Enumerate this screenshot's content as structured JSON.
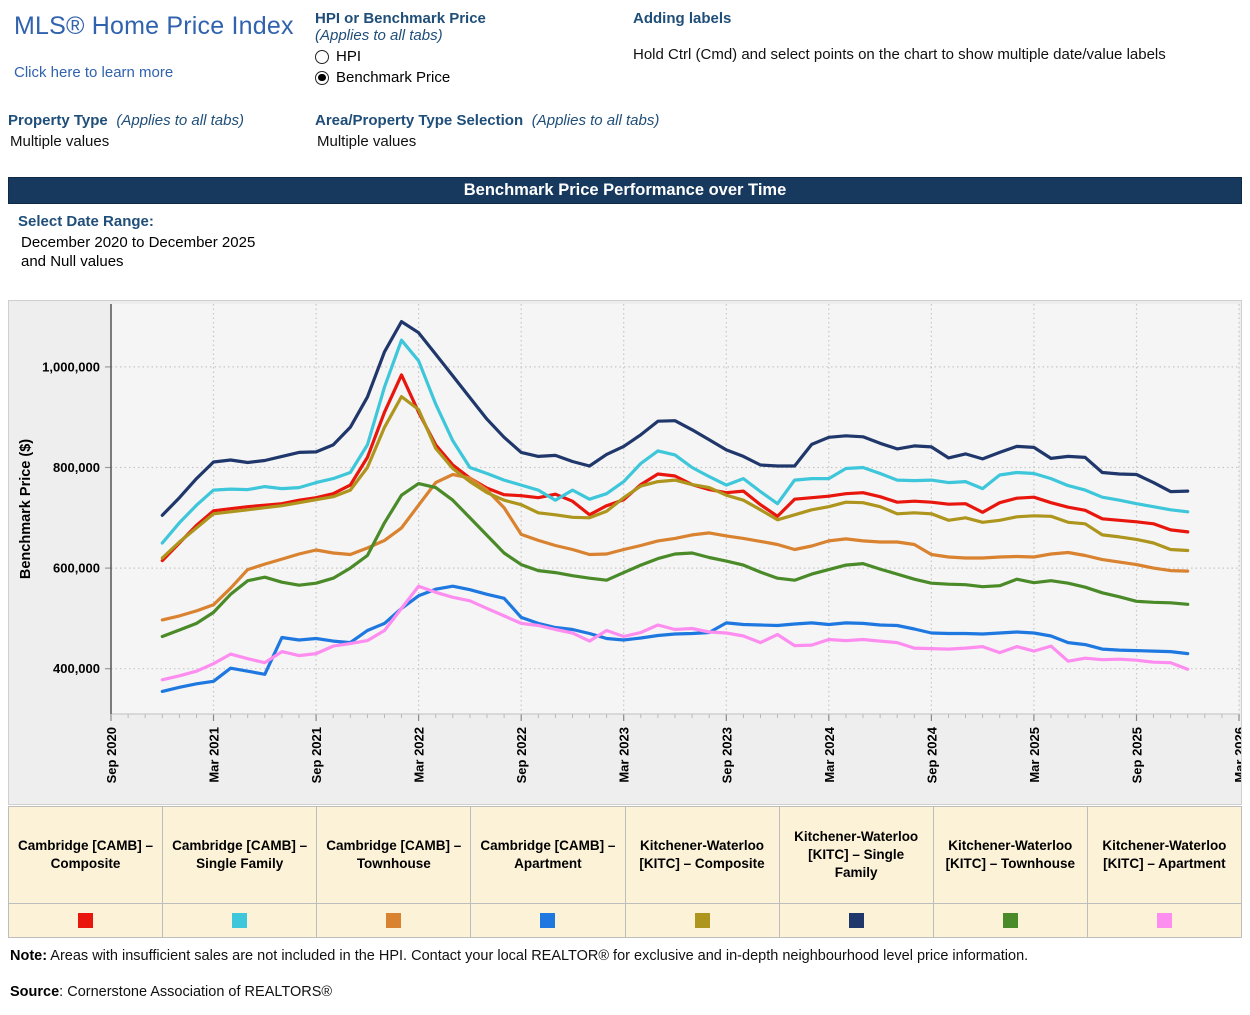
{
  "header": {
    "title": "MLS® Home Price Index",
    "learn_more": "Click here to learn more",
    "measure_selector": {
      "label": "HPI or Benchmark Price",
      "sublabel": "(Applies to all tabs)",
      "options": [
        {
          "label": "HPI",
          "selected": false
        },
        {
          "label": "Benchmark Price",
          "selected": true
        }
      ]
    },
    "adding_labels": {
      "label": "Adding labels",
      "instruction": "Hold Ctrl (Cmd) and select points on the chart to show multiple date/value labels"
    },
    "property_type": {
      "label": "Property Type",
      "sublabel": "(Applies to all tabs)",
      "value": "Multiple values"
    },
    "area_property_type": {
      "label": "Area/Property Type Selection",
      "sublabel": "(Applies to all tabs)",
      "value": "Multiple values"
    }
  },
  "banner": {
    "title": "Benchmark Price Performance over Time",
    "bg_color": "#16395d"
  },
  "date_range": {
    "label": "Select Date Range:",
    "line1": "December 2020 to December 2025",
    "line2": "and Null values"
  },
  "chart_data": {
    "type": "line",
    "title": "Benchmark Price Performance over Time",
    "xlabel": "",
    "ylabel": "Benchmark Price ($)",
    "x_tick_labels": [
      "Sep 2020",
      "Mar 2021",
      "Sep 2021",
      "Mar 2022",
      "Sep 2022",
      "Mar 2023",
      "Sep 2023",
      "Mar 2024",
      "Sep 2024",
      "Mar 2025",
      "Sep 2025",
      "Mar 2026"
    ],
    "y_ticks": [
      {
        "value": 400000,
        "label": "400,000"
      },
      {
        "value": 600000,
        "label": "600,000"
      },
      {
        "value": 800000,
        "label": "800,000"
      },
      {
        "value": 1000000,
        "label": "1,000,000"
      }
    ],
    "ylim": [
      310000,
      1125000
    ],
    "x_domain": [
      "2020-09",
      "2026-03"
    ],
    "data_start": "2020-12",
    "data_end": "2025-12",
    "frequency": "monthly",
    "unit": "values_k = benchmark price in thousands of dollars, estimated from plot",
    "grid": "dotted",
    "legend_position": "bottom-table",
    "series": [
      {
        "name": "Cambridge [CAMB] – Composite",
        "color": "#e8160d",
        "values_k": [
          615,
          650,
          685,
          714,
          718,
          722,
          725,
          728,
          735,
          740,
          748,
          765,
          820,
          910,
          984,
          910,
          845,
          805,
          779,
          759,
          746,
          744,
          740,
          747,
          733,
          706,
          724,
          736,
          766,
          787,
          783,
          766,
          756,
          750,
          753,
          726,
          703,
          737,
          740,
          743,
          748,
          750,
          742,
          731,
          733,
          731,
          727,
          728,
          711,
          730,
          739,
          741,
          730,
          721,
          715,
          698,
          695,
          692,
          688,
          676,
          672
        ]
      },
      {
        "name": "Cambridge [CAMB] – Single Family",
        "color": "#3ec6da",
        "values_k": [
          650,
          690,
          725,
          755,
          757,
          756,
          762,
          758,
          760,
          770,
          778,
          790,
          845,
          960,
          1053,
          1012,
          926,
          853,
          800,
          788,
          775,
          765,
          755,
          735,
          755,
          737,
          748,
          772,
          808,
          833,
          825,
          800,
          782,
          765,
          778,
          752,
          728,
          775,
          778,
          778,
          798,
          800,
          788,
          775,
          774,
          775,
          770,
          772,
          758,
          785,
          790,
          788,
          778,
          764,
          755,
          741,
          735,
          728,
          722,
          716,
          712
        ]
      },
      {
        "name": "Cambridge [CAMB] – Townhouse",
        "color": "#d9822f",
        "values_k": [
          497,
          505,
          515,
          527,
          560,
          597,
          608,
          618,
          628,
          636,
          630,
          627,
          640,
          655,
          680,
          725,
          770,
          786,
          779,
          755,
          720,
          667,
          655,
          645,
          637,
          627,
          628,
          637,
          645,
          654,
          659,
          666,
          670,
          664,
          659,
          653,
          647,
          637,
          644,
          654,
          658,
          654,
          652,
          652,
          647,
          627,
          622,
          620,
          620,
          622,
          623,
          622,
          628,
          631,
          625,
          617,
          612,
          607,
          600,
          595,
          594
        ]
      },
      {
        "name": "Cambridge [CAMB] – Apartment",
        "color": "#1e78e0",
        "values_k": [
          355,
          363,
          370,
          375,
          401,
          395,
          389,
          462,
          457,
          460,
          455,
          452,
          476,
          490,
          520,
          545,
          558,
          564,
          557,
          548,
          540,
          502,
          490,
          482,
          478,
          470,
          460,
          457,
          461,
          466,
          469,
          470,
          472,
          491,
          488,
          487,
          486,
          489,
          491,
          488,
          491,
          490,
          487,
          486,
          479,
          471,
          470,
          470,
          469,
          471,
          473,
          471,
          465,
          452,
          448,
          439,
          437,
          436,
          435,
          434,
          430
        ]
      },
      {
        "name": "Kitchener-Waterloo [KITC] – Composite",
        "color": "#ae951d",
        "values_k": [
          620,
          652,
          680,
          708,
          712,
          716,
          720,
          724,
          730,
          736,
          742,
          755,
          800,
          880,
          941,
          915,
          838,
          798,
          772,
          750,
          735,
          726,
          710,
          706,
          701,
          700,
          713,
          740,
          763,
          772,
          775,
          766,
          760,
          745,
          735,
          716,
          696,
          706,
          716,
          722,
          731,
          730,
          722,
          708,
          710,
          708,
          695,
          700,
          691,
          695,
          702,
          704,
          703,
          691,
          688,
          666,
          662,
          657,
          650,
          637,
          635
        ]
      },
      {
        "name": "Kitchener-Waterloo [KITC] – Single Family",
        "color": "#20376b",
        "values_k": [
          705,
          740,
          778,
          811,
          815,
          810,
          814,
          822,
          830,
          831,
          845,
          880,
          940,
          1030,
          1090,
          1068,
          1025,
          982,
          939,
          896,
          860,
          830,
          822,
          824,
          812,
          803,
          826,
          842,
          865,
          892,
          893,
          875,
          855,
          835,
          822,
          805,
          803,
          803,
          846,
          860,
          863,
          861,
          848,
          837,
          843,
          841,
          819,
          827,
          817,
          830,
          842,
          840,
          818,
          822,
          820,
          790,
          787,
          786,
          770,
          752,
          753
        ]
      },
      {
        "name": "Kitchener-Waterloo [KITC] – Townhouse",
        "color": "#4a8a28",
        "values_k": [
          464,
          477,
          490,
          512,
          548,
          575,
          582,
          572,
          566,
          570,
          580,
          600,
          625,
          690,
          745,
          768,
          760,
          735,
          700,
          665,
          630,
          607,
          595,
          591,
          585,
          580,
          576,
          591,
          606,
          619,
          628,
          630,
          621,
          614,
          606,
          592,
          580,
          576,
          588,
          597,
          606,
          609,
          598,
          588,
          578,
          570,
          568,
          567,
          563,
          565,
          578,
          571,
          575,
          570,
          562,
          551,
          543,
          534,
          532,
          531,
          528
        ]
      },
      {
        "name": "Kitchener-Waterloo [KITC] – Apartment",
        "color": "#fd8ef0",
        "values_k": [
          378,
          386,
          395,
          410,
          429,
          420,
          412,
          434,
          426,
          430,
          445,
          450,
          456,
          476,
          520,
          564,
          552,
          542,
          535,
          520,
          505,
          490,
          486,
          478,
          471,
          455,
          476,
          464,
          472,
          487,
          478,
          480,
          473,
          471,
          465,
          452,
          468,
          446,
          447,
          458,
          456,
          458,
          455,
          452,
          441,
          440,
          439,
          441,
          444,
          432,
          444,
          435,
          445,
          415,
          421,
          418,
          419,
          417,
          413,
          412,
          399
        ]
      }
    ]
  },
  "legend": {
    "entries": [
      {
        "label": "Cambridge [CAMB] – Composite",
        "color": "#e8160d"
      },
      {
        "label": "Cambridge [CAMB] – Single Family",
        "color": "#3ec6da"
      },
      {
        "label": "Cambridge [CAMB] – Townhouse",
        "color": "#d9822f"
      },
      {
        "label": "Cambridge [CAMB] – Apartment",
        "color": "#1e78e0"
      },
      {
        "label": "Kitchener-Waterloo [KITC] – Composite",
        "color": "#ae951d"
      },
      {
        "label": "Kitchener-Waterloo [KITC] – Single Family",
        "color": "#20376b"
      },
      {
        "label": "Kitchener-Waterloo [KITC] – Townhouse",
        "color": "#4a8a28"
      },
      {
        "label": "Kitchener-Waterloo [KITC] – Apartment",
        "color": "#fd8ef0"
      }
    ]
  },
  "footer": {
    "note_label": "Note:",
    "note_text": " Areas with insufficient sales are not included in the HPI. Contact your local REALTOR® for exclusive and in-depth neighbourhood level price information.",
    "source_label": "Source",
    "source_text": ": Cornerstone Association of REALTORS®"
  }
}
